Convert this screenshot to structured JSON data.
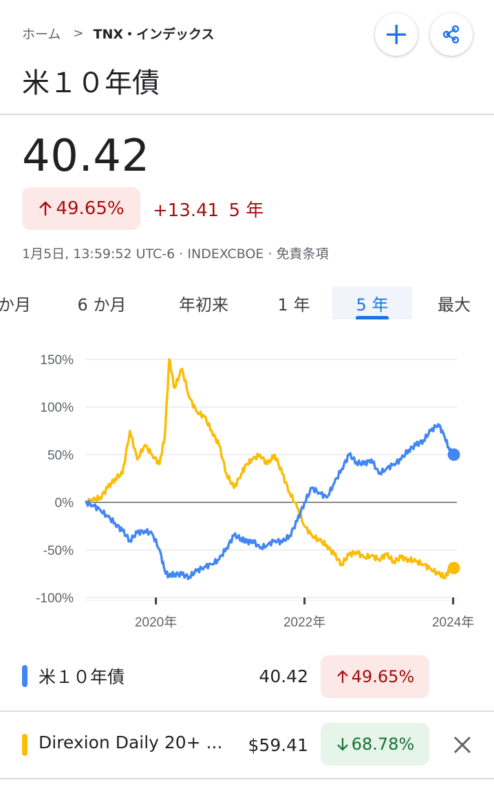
{
  "breadcrumb": {
    "home": "ホーム",
    "separator": ">",
    "current": "TNX・インデックス"
  },
  "title": "米１０年債",
  "header_buttons": {
    "add": "add-icon",
    "share": "share-icon"
  },
  "quote": {
    "price": "40.42",
    "change_percent": "49.65%",
    "change_direction": "up",
    "change_absolute": "+13.41",
    "change_period": "5 年",
    "timestamp": "1月5日, 13:59:52 UTC-6",
    "exchange": "INDEXCBOE",
    "disclaimer": "免責条項"
  },
  "range_tabs": [
    {
      "label": "か月",
      "active": false
    },
    {
      "label": "6 か月",
      "active": false
    },
    {
      "label": "年初来",
      "active": false
    },
    {
      "label": "1 年",
      "active": false
    },
    {
      "label": "5 年",
      "active": true
    },
    {
      "label": "最大",
      "active": false
    }
  ],
  "colors": {
    "blue_series": "#4285f4",
    "yellow_series": "#fbbc04",
    "negative": "#a50e0e",
    "positive": "#137333",
    "active_tab": "#1a73e8"
  },
  "chart_data": {
    "type": "line",
    "y_ticks": [
      "150%",
      "100%",
      "50%",
      "0%",
      "-50%",
      "-100%"
    ],
    "x_ticks": [
      "2020年",
      "2022年",
      "2024年"
    ],
    "ylim": [
      -100,
      150
    ],
    "xlim": [
      2019.05,
      2024.05
    ],
    "grid": true,
    "x": [
      2019.05,
      2019.15,
      2019.25,
      2019.35,
      2019.45,
      2019.55,
      2019.65,
      2019.75,
      2019.85,
      2019.95,
      2020.05,
      2020.12,
      2020.18,
      2020.25,
      2020.35,
      2020.45,
      2020.55,
      2020.65,
      2020.75,
      2020.85,
      2020.95,
      2021.05,
      2021.15,
      2021.22,
      2021.3,
      2021.4,
      2021.5,
      2021.6,
      2021.7,
      2021.8,
      2021.9,
      2022.0,
      2022.1,
      2022.2,
      2022.3,
      2022.4,
      2022.5,
      2022.6,
      2022.7,
      2022.8,
      2022.9,
      2023.0,
      2023.1,
      2023.2,
      2023.3,
      2023.4,
      2023.5,
      2023.6,
      2023.7,
      2023.8,
      2023.88,
      2023.95,
      2024.01
    ],
    "series": [
      {
        "name": "米１０年債",
        "values": [
          0,
          -3,
          -8,
          -15,
          -22,
          -30,
          -40,
          -32,
          -30,
          -33,
          -50,
          -72,
          -78,
          -75,
          -76,
          -78,
          -72,
          -68,
          -65,
          -60,
          -48,
          -35,
          -38,
          -42,
          -40,
          -48,
          -45,
          -40,
          -42,
          -35,
          -20,
          0,
          15,
          10,
          5,
          20,
          35,
          50,
          42,
          40,
          45,
          30,
          35,
          40,
          45,
          55,
          60,
          65,
          75,
          82,
          70,
          55,
          50
        ]
      },
      {
        "name": "Direxion Daily 20+ ...",
        "values": [
          0,
          2,
          5,
          15,
          25,
          30,
          75,
          45,
          60,
          50,
          40,
          70,
          150,
          120,
          140,
          110,
          95,
          90,
          75,
          60,
          30,
          15,
          30,
          40,
          45,
          50,
          40,
          50,
          30,
          10,
          -5,
          -25,
          -35,
          -40,
          -45,
          -55,
          -65,
          -55,
          -52,
          -58,
          -56,
          -60,
          -55,
          -62,
          -58,
          -60,
          -62,
          -65,
          -70,
          -75,
          -78,
          -72,
          -69
        ]
      }
    ]
  },
  "comparison": [
    {
      "name": "米１０年債",
      "price": "40.42",
      "change": "49.65%",
      "direction": "up",
      "color": "#4285f4",
      "removable": false
    },
    {
      "name": "Direxion Daily 20+ ...",
      "price": "$59.41",
      "change": "68.78%",
      "direction": "down",
      "color": "#fbbc04",
      "removable": true
    }
  ]
}
